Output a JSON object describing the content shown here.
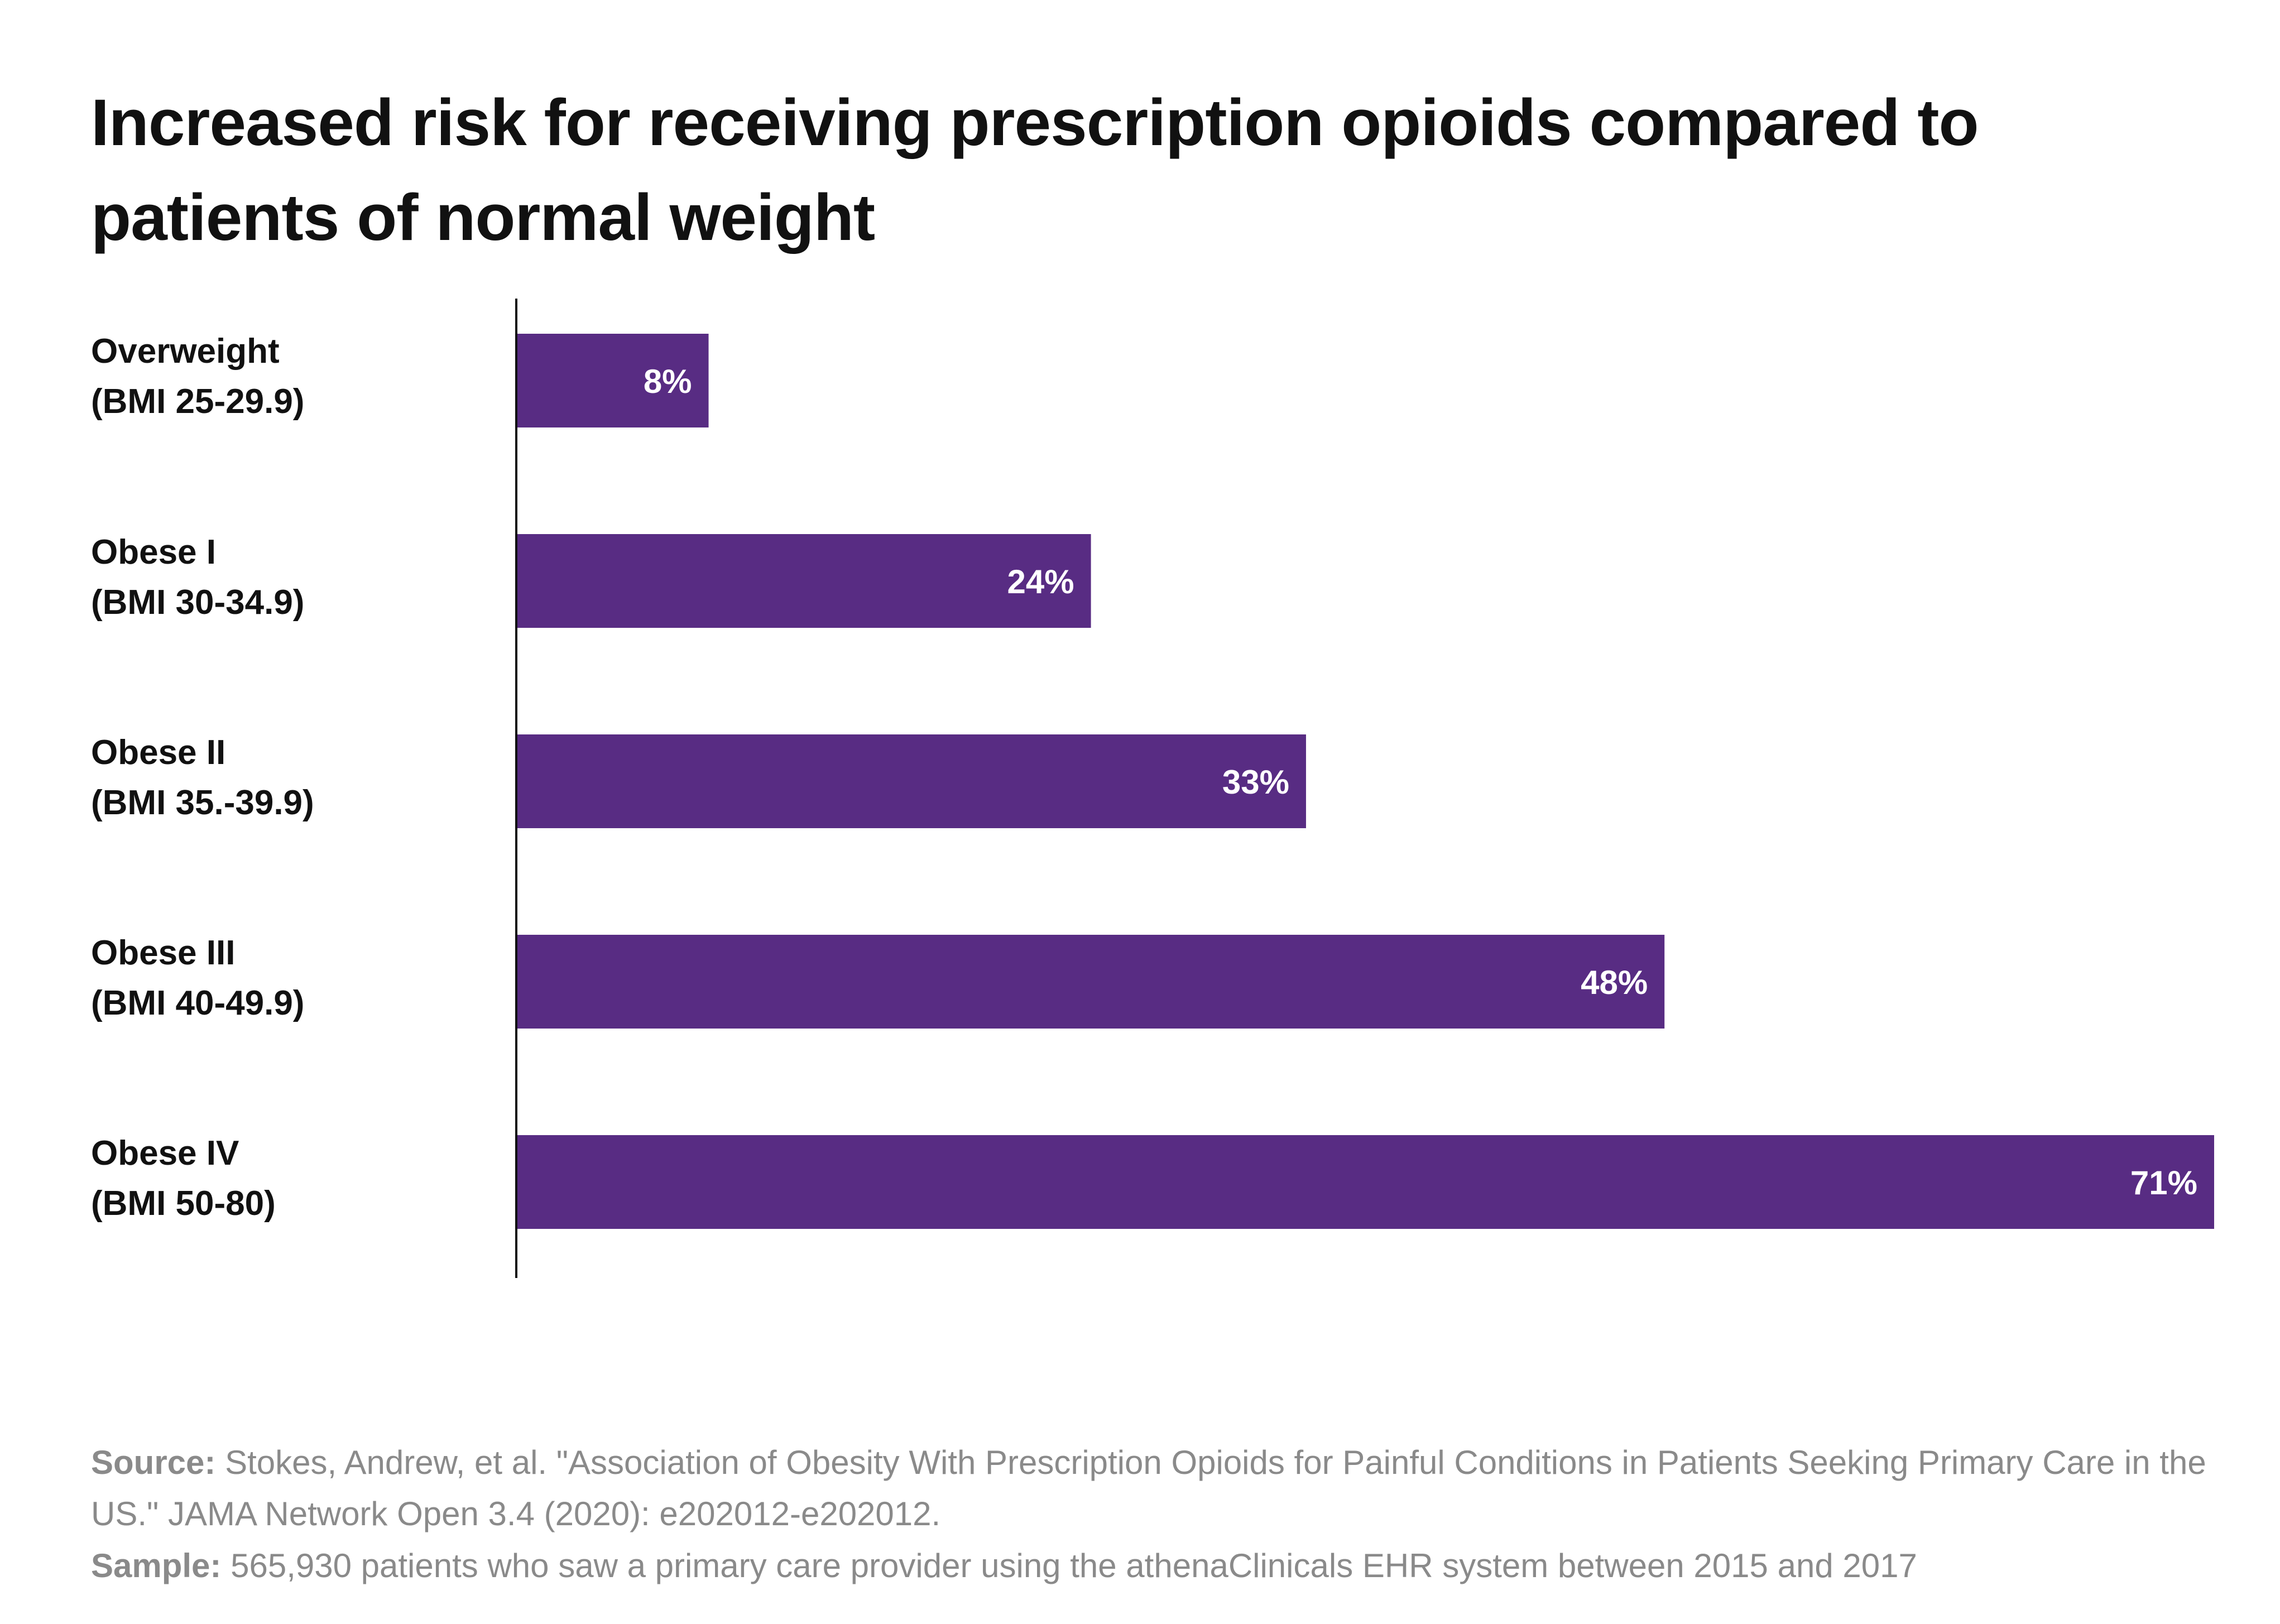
{
  "chart_data": {
    "type": "bar",
    "orientation": "horizontal",
    "title": "Increased risk for receiving prescription opioids compared to patients of normal weight",
    "categories": [
      [
        "Overweight",
        "(BMI 25-29.9)"
      ],
      [
        "Obese I",
        "(BMI 30-34.9)"
      ],
      [
        "Obese II",
        "(BMI 35.-39.9)"
      ],
      [
        "Obese III",
        "(BMI 40-49.9)"
      ],
      [
        "Obese IV",
        "(BMI 50-80)"
      ]
    ],
    "values": [
      8,
      24,
      33,
      48,
      71
    ],
    "data_labels": [
      "8%",
      "24%",
      "33%",
      "48%",
      "71%"
    ],
    "unit": "%",
    "xlim": [
      0,
      71
    ],
    "grid": false,
    "legend": "none",
    "bar_color": "#582c83",
    "label_inside_color": "#ffffff",
    "label_outside_color": "#6e6e6e"
  },
  "footer": {
    "source_label": "Source:",
    "source_text": "Stokes, Andrew, et al. \"Association of Obesity With Prescription Opioids for Painful Conditions in Patients Seeking Primary Care in the US.\" JAMA Network Open 3.4 (2020): e202012-e202012.",
    "sample_label": "Sample:",
    "sample_text": "565,930 patients who saw a primary care provider using the athenaClinicals EHR system between 2015 and 2017"
  }
}
